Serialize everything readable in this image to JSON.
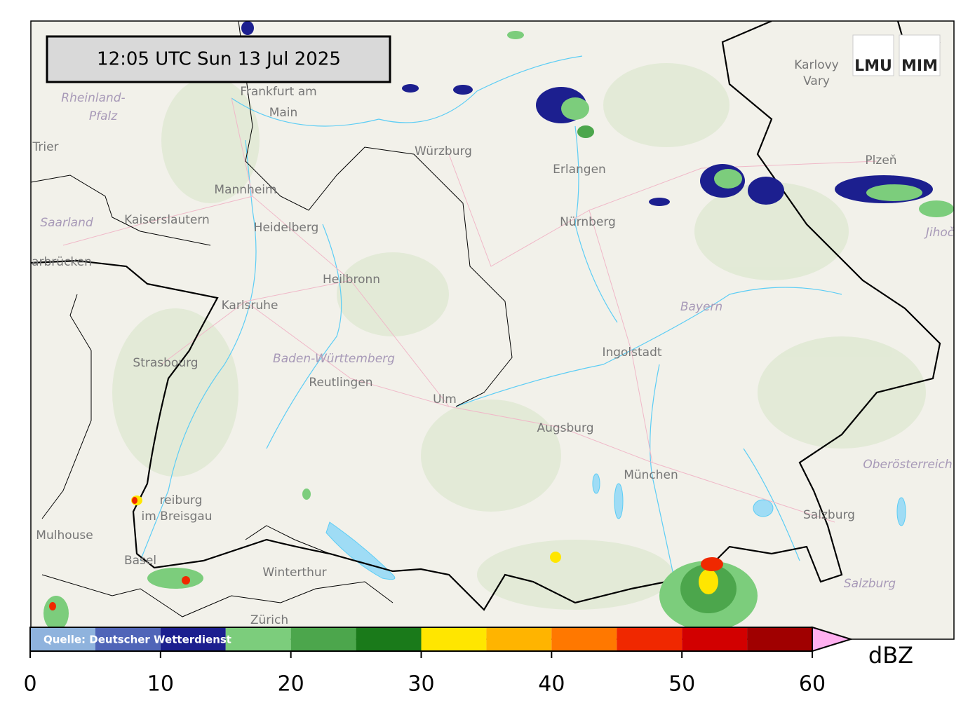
{
  "timestamp": "12:05 UTC  Sun 13 Jul 2025",
  "logos": [
    "LMU",
    "MIM"
  ],
  "source": "Quelle: Deutscher Wetterdienst",
  "places": [
    "Frankfurt am",
    "Main",
    "Rheinland-",
    "Pfalz",
    "Trier",
    "Würzburg",
    "Erlangen",
    "Karlovy",
    "Vary",
    "Plzeň",
    "Mannheim",
    "Kaiserslautern",
    "Heidelberg",
    "Saarland",
    "Nürnberg",
    "arbrücken",
    "Heilbronn",
    "Karlsruhe",
    "Bayern",
    "Ingolstadt",
    "Strasbourg",
    "Baden-Württemberg",
    "Reutlingen",
    "Ulm",
    "Augsburg",
    "München",
    "Oberösterreich",
    "reiburg",
    "im Breisgau",
    "Mulhouse",
    "Salzburg",
    "Basel",
    "Winterthur",
    "Salzburg",
    "Zürich",
    "Jihoč"
  ],
  "colorbar": {
    "label": "dBZ",
    "range": [
      0,
      60
    ],
    "ticks": [
      0,
      10,
      20,
      30,
      40,
      50,
      60
    ],
    "levels": [
      0,
      5,
      10,
      15,
      20,
      25,
      30,
      35,
      40,
      45,
      50,
      55,
      60
    ],
    "colors": [
      "#8fb3dd",
      "#5065b8",
      "#1c1f8f",
      "#7ccd7c",
      "#4ca64c",
      "#1a7a1a",
      "#ffe600",
      "#ffb400",
      "#ff7800",
      "#f02800",
      "#d20000",
      "#a00000"
    ],
    "extend_color": "#ffb0f0"
  }
}
